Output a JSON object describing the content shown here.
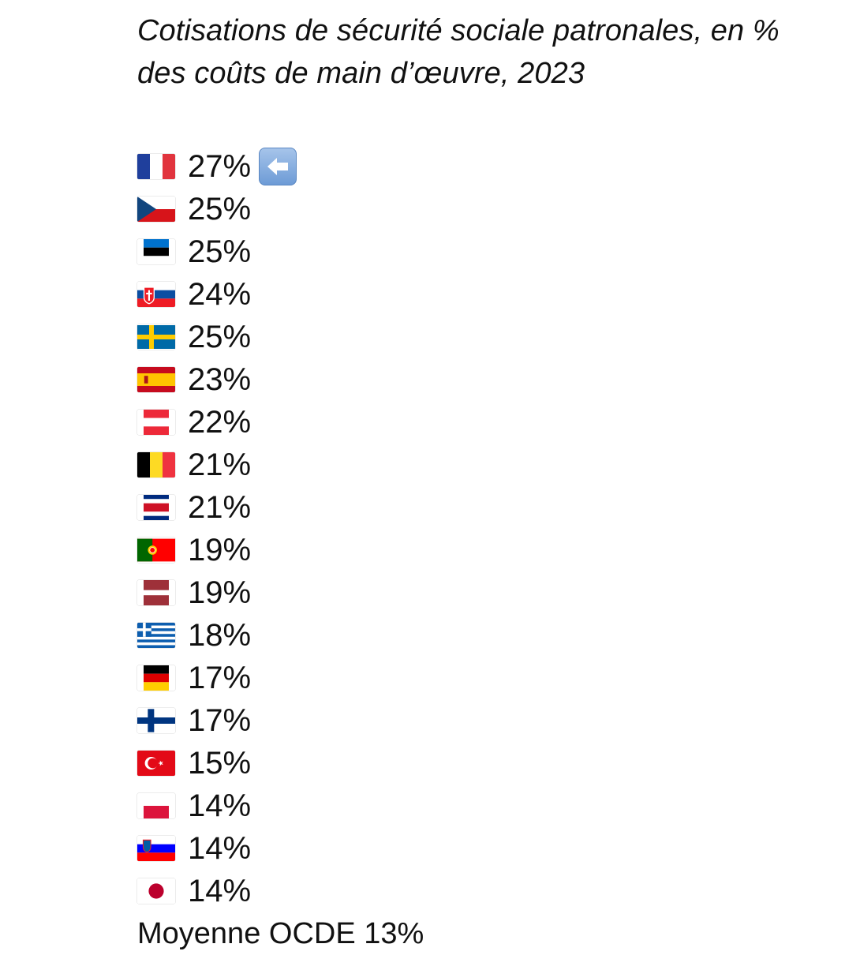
{
  "post": {
    "title": "Cotisations de sécurité sociale patronales, en % des coûts de main d’œuvre, 2023",
    "rows": [
      {
        "flag": "france-flag-icon",
        "value": "27%",
        "highlight_icon": "left-arrow-icon"
      },
      {
        "flag": "czech-republic-flag-icon",
        "value": "25%"
      },
      {
        "flag": "estonia-flag-icon",
        "value": "25%"
      },
      {
        "flag": "slovakia-flag-icon",
        "value": "24%"
      },
      {
        "flag": "sweden-flag-icon",
        "value": "25%"
      },
      {
        "flag": "spain-flag-icon",
        "value": "23%"
      },
      {
        "flag": "austria-flag-icon",
        "value": "22%"
      },
      {
        "flag": "belgium-flag-icon",
        "value": "21%"
      },
      {
        "flag": "costa-rica-flag-icon",
        "value": "21%"
      },
      {
        "flag": "portugal-flag-icon",
        "value": "19%"
      },
      {
        "flag": "latvia-flag-icon",
        "value": "19%"
      },
      {
        "flag": "greece-flag-icon",
        "value": "18%"
      },
      {
        "flag": "germany-flag-icon",
        "value": "17%"
      },
      {
        "flag": "finland-flag-icon",
        "value": "17%"
      },
      {
        "flag": "turkey-flag-icon",
        "value": "15%"
      },
      {
        "flag": "poland-flag-icon",
        "value": "14%"
      },
      {
        "flag": "slovenia-flag-icon",
        "value": "14%"
      },
      {
        "flag": "japan-flag-icon",
        "value": "14%"
      }
    ],
    "footer": "Moyenne OCDE 13%"
  },
  "colors": {
    "text": "#111111",
    "arrow_button": "#7aa5dc"
  }
}
